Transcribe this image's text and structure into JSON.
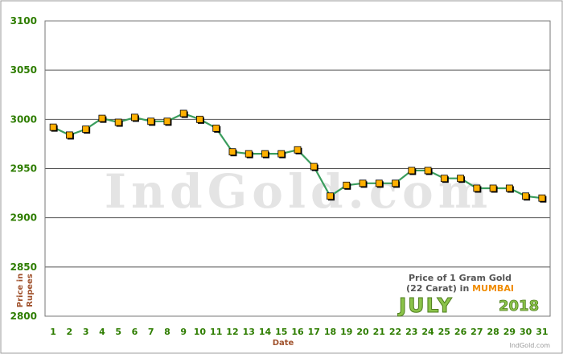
{
  "chart_data": {
    "type": "line",
    "xlabel": "Date",
    "ylabel": "Price in Rupees",
    "ylim": [
      2800,
      3100
    ],
    "yticks": [
      2800,
      2850,
      2900,
      2950,
      3000,
      3050,
      3100
    ],
    "x": [
      1,
      2,
      3,
      4,
      5,
      6,
      7,
      8,
      9,
      10,
      11,
      12,
      13,
      14,
      15,
      16,
      17,
      18,
      19,
      20,
      21,
      22,
      23,
      24,
      25,
      26,
      27,
      28,
      29,
      30,
      31
    ],
    "values": [
      2992,
      2984,
      2990,
      3001,
      2997,
      3002,
      2998,
      2998,
      3006,
      3000,
      2991,
      2967,
      2965,
      2965,
      2965,
      2969,
      2952,
      2922,
      2933,
      2935,
      2935,
      2935,
      2948,
      2948,
      2940,
      2940,
      2930,
      2930,
      2930,
      2922,
      2920
    ],
    "grid": true,
    "watermark": "IndGold.com",
    "info": {
      "line1": "Price of 1 Gram Gold",
      "line2_prefix": "(22 Carat) in ",
      "city": "MUMBAI",
      "month": "JULY",
      "year": "2018",
      "site": "IndGold.com"
    },
    "colors": {
      "line": "#3a9d5d",
      "marker_fill": "#ffb000",
      "marker_edge": "#000000",
      "tick_text": "#2e7d00",
      "axis_label": "#a0522d"
    }
  }
}
